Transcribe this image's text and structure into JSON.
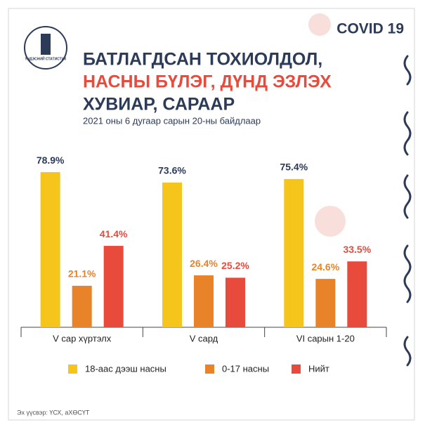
{
  "chart_data": {
    "type": "bar",
    "badge": "COVID 19",
    "title_lines": [
      "БАТЛАГДСАН ТОХИОЛДОЛ,",
      "НАСНЫ БҮЛЭГ, ДҮНД ЭЗЛЭХ",
      "ХУВИАР, САРААР"
    ],
    "subtitle": "2021 оны 6 дугаар сарын 20-ны байдлаар",
    "logo_text": "ҮНДЭСНИЙ СТАТИСТИК",
    "source": "Эх үүсвэр: ҮСХ, аХӨСҮТ",
    "categories": [
      "V сар хүртэлх",
      "V сард",
      "VI сарын 1-20"
    ],
    "series": [
      {
        "name": "18-аас дээш насны",
        "color": "#f6c51b",
        "label_color": "#2c3b58",
        "values": [
          78.9,
          73.6,
          75.4
        ],
        "value_labels": [
          "78.9%",
          "73.6%",
          "75.4%"
        ]
      },
      {
        "name": "0-17 насны",
        "color": "#e8832a",
        "label_color": "#e8832a",
        "values": [
          21.1,
          26.4,
          24.6
        ],
        "value_labels": [
          "21.1%",
          "26.4%",
          "24.6%"
        ]
      },
      {
        "name": "Нийт",
        "color": "#e84a3b",
        "label_color": "#e84a3b",
        "values": [
          41.4,
          25.2,
          33.5
        ],
        "value_labels": [
          "41.4%",
          "25.2%",
          "33.5%"
        ]
      }
    ]
  }
}
